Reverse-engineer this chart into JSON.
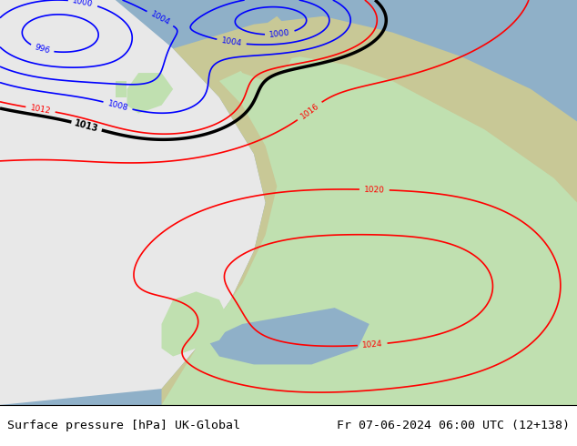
{
  "title_left": "Surface pressure [hPa] UK-Global",
  "title_right": "Fr 07-06-2024 06:00 UTC (12+138)",
  "bg_color": "#ffffff",
  "land_color_olive": "#c8c896",
  "sea_color": "#8fb0c8",
  "highlight_color": "#c0e0b0",
  "shadow_color": "#d8d8d8",
  "footer_fontsize": 9.5,
  "fig_width": 6.34,
  "fig_height": 4.9,
  "dpi": 100
}
